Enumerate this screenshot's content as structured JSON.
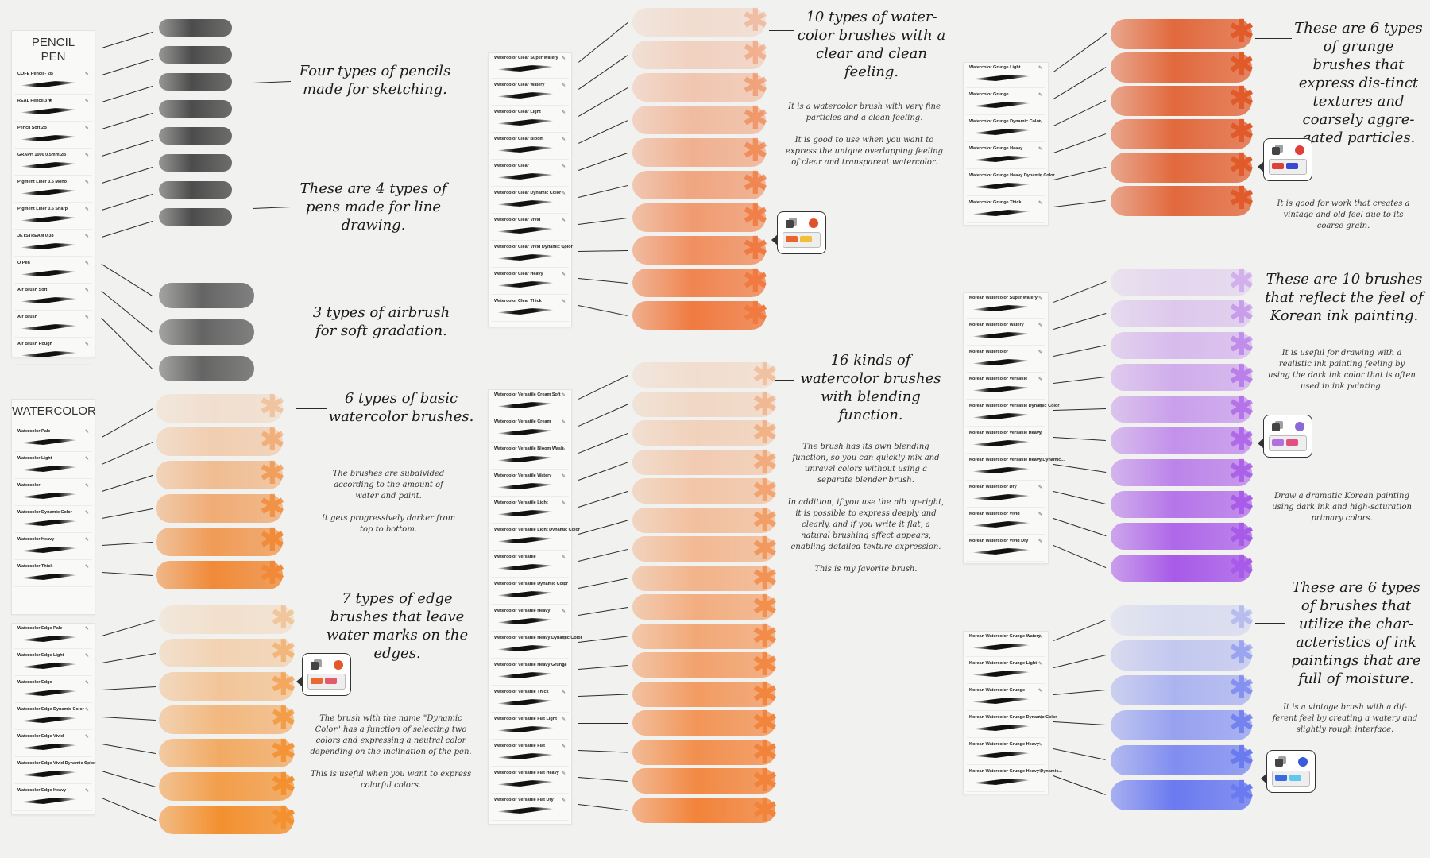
{
  "panels": [
    {
      "id": "pencil",
      "header": [
        "PENCIL",
        "PEN"
      ],
      "items": [
        "COFE Pencil - 2B",
        "REAL Pencil 3 ★",
        "Pencil Soft 2B",
        "GRAPH 1000 0.5mm 2B",
        "Pigment Liner 0.5 Mono",
        "Pigment Liner 0.5 Sharp",
        "JETSTREAM 0.38",
        "O Pen",
        "Air Brush Soft",
        "Air Brush",
        "Air Brush Rough"
      ]
    },
    {
      "id": "watercolor",
      "header": [
        "WATERCOLOR"
      ],
      "items": [
        "Watercolor Pale",
        "Watercolor Light",
        "Watercolor",
        "Watercolor Dynamic Color",
        "Watercolor Heavy",
        "Watercolor Thick"
      ]
    },
    {
      "id": "edge",
      "header": [],
      "items": [
        "Watercolor Edge Pale",
        "Watercolor Edge Light",
        "Watercolor Edge",
        "Watercolor Edge Dynamic Color",
        "Watercolor Edge Vivid",
        "Watercolor Edge Vivid Dynamic Color",
        "Watercolor Edge Heavy"
      ]
    },
    {
      "id": "clear",
      "header": [],
      "items": [
        "Watercolor Clear Super Watery",
        "Watercolor Clear Watery",
        "Watercolor Clear Light",
        "Watercolor Clear Bloom",
        "Watercolor Clear",
        "Watercolor Clear Dynamic Color",
        "Watercolor Clear Vivid",
        "Watercolor Clear Vivid Dynamic Color",
        "Watercolor Clear Heavy",
        "Watercolor Clear Thick"
      ]
    },
    {
      "id": "versatile",
      "header": [],
      "items": [
        "Watercolor Versatile Cream Soft",
        "Watercolor Versatile Cream",
        "Watercolor Versatile Bloom Wash",
        "Watercolor Versatile Watery",
        "Watercolor Versatile Light",
        "Watercolor Versatile Light Dynamic Color",
        "Watercolor Versatile",
        "Watercolor Versatile Dynamic Color",
        "Watercolor Versatile Heavy",
        "Watercolor Versatile Heavy Dynamic Color",
        "Watercolor Versatile Heavy Grunge",
        "Watercolor Versatile Thick",
        "Watercolor Versatile Flat Light",
        "Watercolor Versatile Flat",
        "Watercolor Versatile Flat Heavy",
        "Watercolor Versatile Flat Dry"
      ]
    },
    {
      "id": "grunge",
      "header": [],
      "items": [
        "Watercolor Grunge Light",
        "Watercolor Grunge",
        "Watercolor Grunge Dynamic Color",
        "Watercolor Grunge Heavy",
        "Watercolor Grunge Heavy Dynamic Color",
        "Watercolor Grunge Thick"
      ]
    },
    {
      "id": "korean",
      "header": [],
      "items": [
        "Korean Watercolor Super Watery",
        "Korean Watercolor Watery",
        "Korean Watercolor",
        "Korean Watercolor Versatile",
        "Korean Watercolor Versatile Dynamic Color",
        "Korean Watercolor Versatile Heavy",
        "Korean Watercolor Versatile Heavy Dynamic...",
        "Korean Watercolor Dry",
        "Korean Watercolor Vivid",
        "Korean Watercolor Vivid Dry"
      ]
    },
    {
      "id": "korean-grunge",
      "header": [],
      "items": [
        "Korean Watercolor Grunge Watery",
        "Korean Watercolor Grunge Light",
        "Korean Watercolor Grunge",
        "Korean Watercolor Grunge Dynamic Color",
        "Korean Watercolor Grunge Heavy",
        "Korean Watercolor Grunge Heavy Dynamic..."
      ]
    }
  ],
  "annotations": {
    "pencils_title": "Four types of pencils made for sketching.",
    "pens_title": "These are 4 types of pens made for line drawing.",
    "airbrush_title": "3 types of airbrush for soft gradation.",
    "basic_title": "6 types of basic watercolor brushes.",
    "basic_desc": "The brushes are subdivided according to the amount of water and paint.\n\nIt gets progressively darker from top to bottom.",
    "edge_title": "7 types of edge brushes that leave water marks on the edges.",
    "dynamic_desc": "The brush with the name \"Dynamic Color\" has a function of selecting two colors and expressing a neutral color depending on the inclination of the pen.\n\nThis is useful when you want to express colorful colors.",
    "clear_title": "10 types of water-color brushes with a clear and clean feeling.",
    "clear_desc": "It is a watercolor brush with very fine particles and a clean feeling.\n\nIt is good to use when you want to express the unique overlapping feeling of clear and transparent watercolor.",
    "versatile_title": "16 kinds of watercolor brushes with blending function.",
    "versatile_desc": "The brush has its own blending function, so you can quickly mix and unravel colors without using a separate blender brush.\n\nIn addition, if you use the nib up-right, it is possible to express deeply and clearly, and if you write it flat, a natural brushing effect appears, enabling detailed texture expression.\n\nThis is my favorite brush.",
    "grunge_title": "These are 6 types of grunge brushes that express dis-tinct textures and coarsely aggre-gated particles.",
    "grunge_desc": "It is good for work that creates a vintage and old feel due to its coarse grain.",
    "korean_title": "These are 10 brushes that reflect the feel of Korean ink painting.",
    "korean_desc": "It is useful for drawing with a realistic ink painting feeling by using the dark ink color that is often used in ink painting.",
    "korean_dynamic_desc": "Draw a dramatic Korean painting using dark ink and high-saturation primary colors.",
    "moist_title": "These are 6 types of brushes that utilize the char-acteristics of ink paintings that are full of moisture.",
    "moist_desc": "It is a vintage brush with a dif-ferent feel by creating a watery and slightly rough interface."
  },
  "bubbles": [
    {
      "id": "edge",
      "dot": "#e35a2a",
      "c1": "#e86a2e",
      "c2": "#e35a6a"
    },
    {
      "id": "clear",
      "dot": "#e0502a",
      "c1": "#e8642a",
      "c2": "#f0c03a"
    },
    {
      "id": "grunge",
      "dot": "#e0403a",
      "c1": "#e0403a",
      "c2": "#3a4ad0"
    },
    {
      "id": "korean",
      "dot": "#8a6ad8",
      "c1": "#b070e0",
      "c2": "#e05080"
    },
    {
      "id": "moist",
      "dot": "#3a5ad8",
      "c1": "#3a6ae0",
      "c2": "#60c8e8"
    }
  ],
  "colors": {
    "pencil": "#3a3a3a",
    "airbrush": "#555555",
    "basic": "#f08a38",
    "edge": "#f3902f",
    "clear": "#f07a40",
    "versatile": "#f2833a",
    "grunge": "#e05a2a",
    "korean": "#a85ae8",
    "moist": "#6a7af0"
  }
}
